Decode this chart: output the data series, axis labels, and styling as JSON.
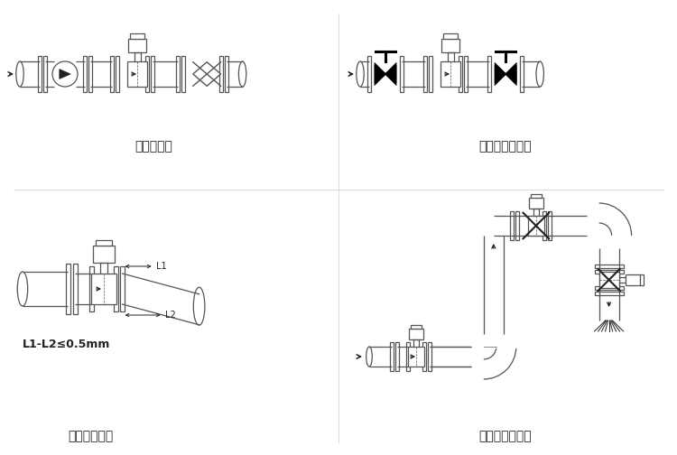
{
  "bg_color": "#ffffff",
  "lc": "#555555",
  "dc": "#222222",
  "black": "#000000",
  "label1": "泵后的安装",
  "label2": "控制阀前的安装",
  "label3": "法兰连接偏差",
  "label4": "弯曲管道上安装",
  "label_l1": "L1",
  "label_l2": "L2",
  "label_formula": "L1-L2≤0.5mm",
  "font_label": 10,
  "font_small": 7,
  "font_formula": 9,
  "fig_w": 7.5,
  "fig_h": 5.04,
  "dpi": 100
}
